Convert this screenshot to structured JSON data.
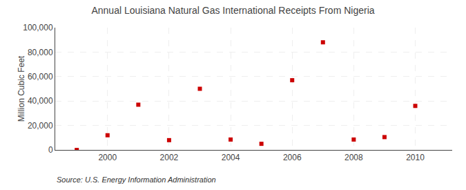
{
  "chart_data": {
    "type": "scatter",
    "title": "Annual Louisiana Natural Gas International Receipts From Nigeria",
    "y_label": "Million Cubic Feet",
    "annotations": [
      "Source: U.S. Energy Information Administration"
    ],
    "x": [
      1999,
      2000,
      2001,
      2002,
      2003,
      2004,
      2005,
      2006,
      2007,
      2008,
      2009,
      2010
    ],
    "values": [
      0,
      12000,
      37000,
      8000,
      50000,
      8500,
      5000,
      57000,
      88000,
      8500,
      10500,
      36000
    ],
    "color": "#cc0000",
    "marker": "square",
    "xlim": [
      1998.3,
      2011.2
    ],
    "ylim": [
      0,
      100000
    ],
    "xticks": [
      2000,
      2002,
      2004,
      2006,
      2008,
      2010
    ],
    "yticks": [
      0,
      {
        "value": 20000,
        "label": "20,000"
      },
      {
        "value": 40000,
        "label": "40,000"
      },
      {
        "value": 60000,
        "label": "60,000"
      },
      {
        "value": 80000,
        "label": "80,000"
      },
      {
        "value": 100000,
        "label": "100,000"
      }
    ],
    "grid": true
  }
}
